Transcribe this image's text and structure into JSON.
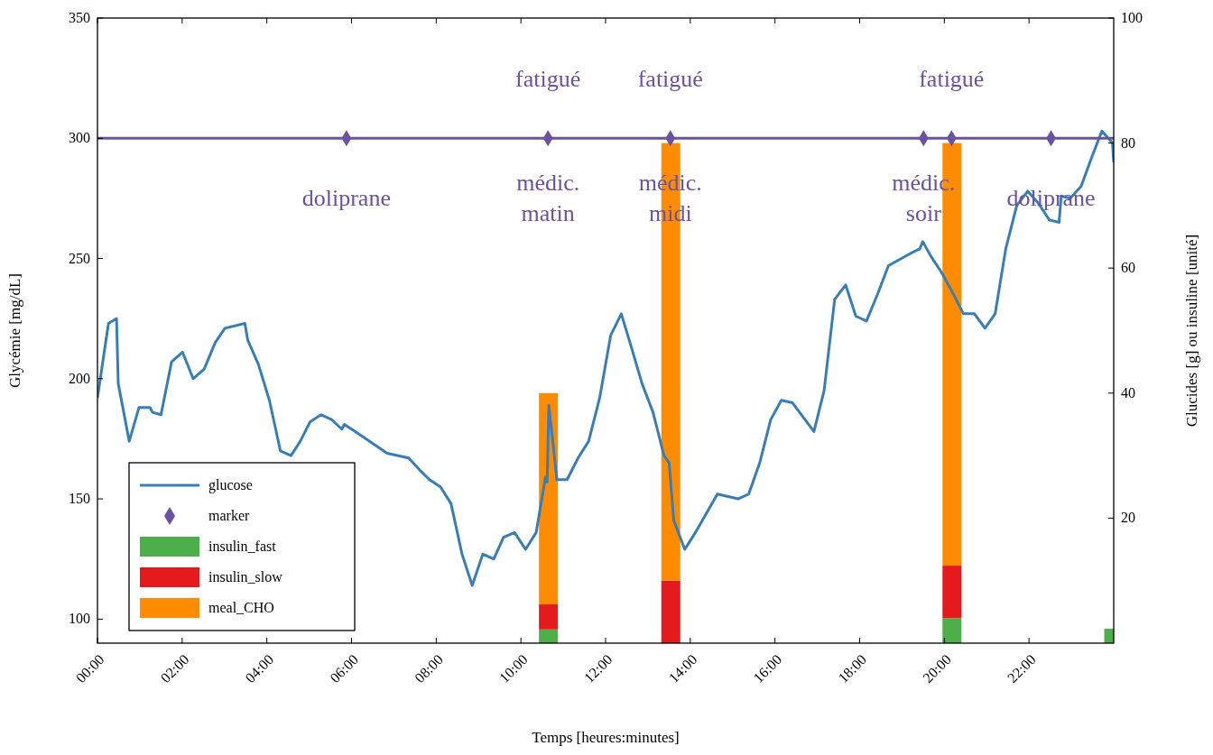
{
  "chart_data": {
    "type": "line",
    "xlabel": "Temps [heures:minutes]",
    "ylabel": "Glycémie [mg/dL]",
    "y2label": "Glucides [g] ou insuline [unité]",
    "xlim": [
      0,
      24
    ],
    "ylim": [
      90,
      350
    ],
    "y2lim": [
      0,
      100
    ],
    "xticks": [
      {
        "value": 0,
        "label": "00:00"
      },
      {
        "value": 2,
        "label": "02:00"
      },
      {
        "value": 4,
        "label": "04:00"
      },
      {
        "value": 6,
        "label": "06:00"
      },
      {
        "value": 8,
        "label": "08:00"
      },
      {
        "value": 10,
        "label": "10:00"
      },
      {
        "value": 12,
        "label": "12:00"
      },
      {
        "value": 14,
        "label": "14:00"
      },
      {
        "value": 16,
        "label": "16:00"
      },
      {
        "value": 18,
        "label": "18:00"
      },
      {
        "value": 20,
        "label": "20:00"
      },
      {
        "value": 22,
        "label": "22:00"
      }
    ],
    "yticks": [
      100,
      150,
      200,
      250,
      300,
      350
    ],
    "y2ticks": [
      20,
      40,
      60,
      80,
      100
    ],
    "grid": false,
    "legend": "bottom left",
    "stacked": true,
    "series": [
      {
        "name": "glucose",
        "color": "#377eb8",
        "marker": "none",
        "x": [
          0,
          0.26,
          0.45,
          0.49,
          0.75,
          0.98,
          1.24,
          1.3,
          1.5,
          1.75,
          2.01,
          2.26,
          2.52,
          2.78,
          3.01,
          3.48,
          3.55,
          3.8,
          4.06,
          4.32,
          4.57,
          4.79,
          5.02,
          5.28,
          5.53,
          5.77,
          5.83,
          6.09,
          6.84,
          7.35,
          7.61,
          7.84,
          8.1,
          8.35,
          8.61,
          8.85,
          9.1,
          9.36,
          9.59,
          9.85,
          10.11,
          10.36,
          10.58,
          10.62,
          10.66,
          10.85,
          11.09,
          11.35,
          11.6,
          11.86,
          12.12,
          12.37,
          12.61,
          12.86,
          13.12,
          13.38,
          13.5,
          13.61,
          13.87,
          14.12,
          14.64,
          15.13,
          15.38,
          15.64,
          15.9,
          16.15,
          16.41,
          16.92,
          17.16,
          17.41,
          17.67,
          17.91,
          18.16,
          18.42,
          18.68,
          19.19,
          19.42,
          19.49,
          19.68,
          19.94,
          20.19,
          20.45,
          20.71,
          20.96,
          21.2,
          21.45,
          21.71,
          21.97,
          22.22,
          22.48,
          22.71,
          22.76,
          22.97,
          23.23,
          23.48,
          23.72,
          23.97,
          24
        ],
        "values": [
          192,
          223,
          225,
          198,
          174,
          188,
          188,
          186,
          185,
          207,
          211,
          200,
          204,
          215,
          221,
          223,
          216,
          206,
          191,
          170,
          168,
          174,
          182,
          185,
          183,
          179,
          181,
          178,
          169,
          167,
          162,
          158,
          155,
          148,
          127,
          114,
          127,
          125,
          134,
          136,
          129,
          136,
          159,
          157,
          189,
          158,
          158,
          167,
          174,
          192,
          218,
          227,
          213,
          198,
          186,
          168,
          165,
          141,
          129,
          136,
          152,
          150,
          152,
          165,
          183,
          191,
          190,
          178,
          195,
          233,
          239,
          226,
          224,
          235,
          247,
          252,
          254,
          257,
          251,
          244,
          236,
          227,
          227,
          221,
          227,
          254,
          272,
          278,
          273,
          266,
          265,
          276,
          275,
          280,
          292,
          303,
          298,
          290
        ]
      },
      {
        "name": "marker",
        "type": "scatter",
        "color": "#6a51a3",
        "marker": "diamond",
        "x": [
          5.88,
          10.64,
          13.53,
          19.51,
          20.17,
          22.52
        ],
        "values": [
          300,
          300,
          300,
          300,
          300,
          300
        ]
      },
      {
        "name": "insulin_fast",
        "type": "bar",
        "axis": "y2",
        "color": "#4daf4a",
        "x": [
          10.65,
          13.54,
          20.18,
          24
        ],
        "values": [
          2.2,
          0,
          4,
          2.3
        ]
      },
      {
        "name": "insulin_slow",
        "type": "bar",
        "axis": "y2",
        "color": "#e41a1c",
        "x": [
          10.65,
          13.54,
          20.18,
          24
        ],
        "values": [
          4,
          10,
          8.4,
          0
        ]
      },
      {
        "name": "meal_CHO",
        "type": "bar",
        "axis": "y2",
        "color": "#ff8c00",
        "x": [
          10.65,
          13.54,
          20.18,
          24
        ],
        "values": [
          33.8,
          70,
          67.6,
          0
        ]
      }
    ],
    "ref_lines": [
      {
        "axis": "y",
        "value": 300,
        "color": "#6a51a3",
        "line_style": "solid"
      }
    ],
    "annotations": [
      {
        "text": "fatigué",
        "x": 10.64,
        "y": 300
      },
      {
        "text": "fatigué",
        "x": 13.53,
        "y": 300
      },
      {
        "text": "fatigué",
        "x": 20.17,
        "y": 300
      },
      {
        "text": "doliprane",
        "x": 5.88,
        "y": 300
      },
      {
        "text": "doliprane",
        "x": 22.52,
        "y": 300
      },
      {
        "text": "médic.\nmatin",
        "x": 10.64,
        "y": 300
      },
      {
        "text": "médic.\nmidi",
        "x": 13.53,
        "y": 300
      },
      {
        "text": "médic.\nsoir",
        "x": 19.51,
        "y": 300
      }
    ]
  }
}
